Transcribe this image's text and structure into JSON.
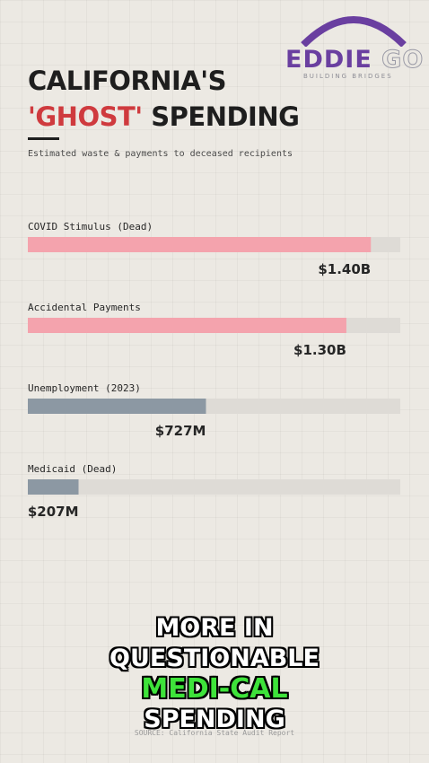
{
  "logo": {
    "word": "EDDIE",
    "go": "GO",
    "tagline": "BUILDING BRIDGES",
    "color": "#6a3fa0"
  },
  "title": {
    "line1": "CALIFORNIA'S",
    "highlight": "'GHOST'",
    "rest": " SPENDING"
  },
  "subtitle": "Estimated waste & payments to deceased recipients",
  "chart_data": {
    "type": "bar",
    "orientation": "horizontal",
    "categories": [
      "COVID Stimulus (Dead)",
      "Accidental Payments",
      "Unemployment (2023)",
      "Medicaid (Dead)"
    ],
    "values": [
      1.4,
      1.3,
      0.727,
      0.207
    ],
    "value_labels": [
      "$1.40B",
      "$1.30B",
      "$727M",
      "$207M"
    ],
    "unit": "billion USD",
    "xlim": [
      0,
      1.52
    ],
    "colors": [
      "#f4a3ad",
      "#f4a3ad",
      "#8c98a3",
      "#8c98a3"
    ],
    "track_color": "#dedbd6",
    "grid": false
  },
  "caption": {
    "line1": "MORE IN",
    "line2": "QUESTIONABLE",
    "line3": "MEDI-CAL",
    "line4": "SPENDING"
  },
  "source": "SOURCE: California State Audit Report"
}
